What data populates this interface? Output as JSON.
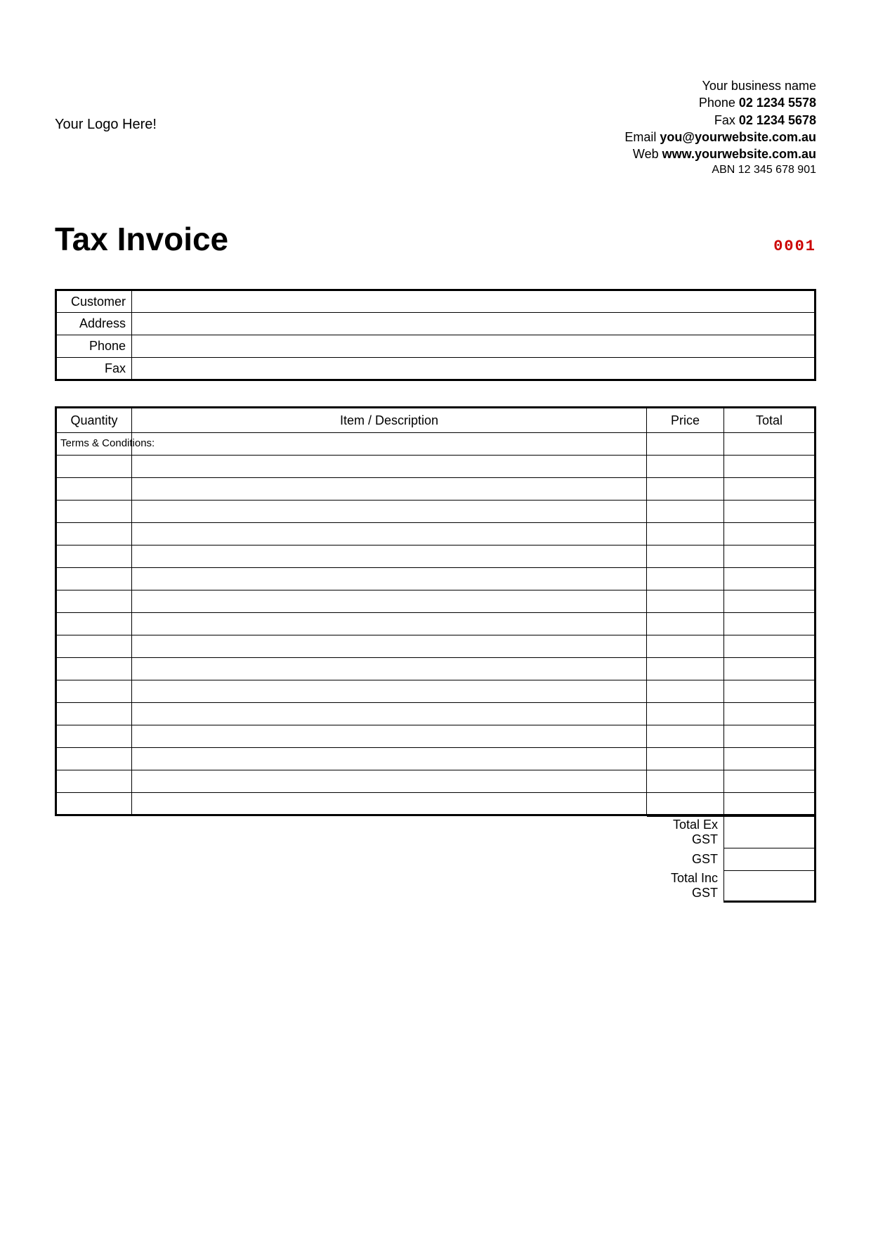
{
  "logo_placeholder": "Your Logo Here!",
  "business": {
    "name": "Your business name",
    "phone_label": "Phone",
    "phone": "02 1234 5578",
    "fax_label": "Fax",
    "fax": "02 1234 5678",
    "email_label": "Email",
    "email": "you@yourwebsite.com.au",
    "web_label": "Web",
    "web": "www.yourwebsite.com.au",
    "abn_label": "ABN",
    "abn": "12 345 678 901"
  },
  "title": "Tax Invoice",
  "invoice_number": "0001",
  "customer_fields": {
    "customer": "Customer",
    "address": "Address",
    "phone": "Phone",
    "fax": "Fax"
  },
  "items_header": {
    "quantity": "Quantity",
    "description": "Item / Description",
    "price": "Price",
    "total": "Total"
  },
  "item_row_count": 17,
  "summary": {
    "total_ex_gst": "Total Ex GST",
    "gst": "GST",
    "total_inc_gst": "Total Inc GST"
  },
  "terms_label": "Terms & Conditions:",
  "colors": {
    "invoice_number": "#cc0000",
    "text": "#000000",
    "border": "#000000",
    "background": "#ffffff"
  }
}
